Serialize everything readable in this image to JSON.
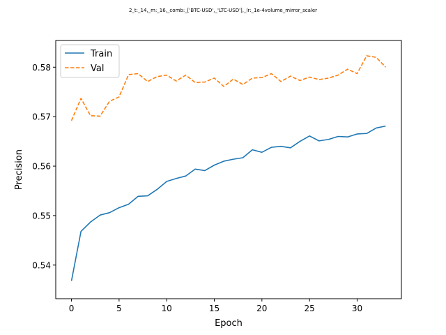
{
  "chart_data": {
    "type": "line",
    "title": "2_t:_14,_m:_16,_comb:_['BTC-USD',_'LTC-USD'],_lr:_1e-4volume_mirror_scaler",
    "xlabel": "Epoch",
    "ylabel": "Precision",
    "xlim": [
      -1.65,
      34.65
    ],
    "ylim": [
      0.5332,
      0.5854
    ],
    "xticks": [
      0,
      5,
      10,
      15,
      20,
      25,
      30
    ],
    "yticks": [
      0.54,
      0.55,
      0.56,
      0.57,
      0.58
    ],
    "ytick_labels": [
      "0.54",
      "0.55",
      "0.56",
      "0.57",
      "0.58"
    ],
    "grid": false,
    "legend_position": "upper-left",
    "x": [
      0,
      1,
      2,
      3,
      4,
      5,
      6,
      7,
      8,
      9,
      10,
      11,
      12,
      13,
      14,
      15,
      16,
      17,
      18,
      19,
      20,
      21,
      22,
      23,
      24,
      25,
      26,
      27,
      28,
      29,
      30,
      31,
      32,
      33
    ],
    "series": [
      {
        "name": "Train",
        "color": "#1f77b4",
        "dash": "solid",
        "values": [
          0.5368,
          0.5468,
          0.5487,
          0.5501,
          0.5506,
          0.5516,
          0.5523,
          0.5539,
          0.554,
          0.5553,
          0.5569,
          0.5575,
          0.558,
          0.5594,
          0.5591,
          0.5602,
          0.561,
          0.5614,
          0.5617,
          0.5633,
          0.5628,
          0.5638,
          0.564,
          0.5637,
          0.565,
          0.5661,
          0.5651,
          0.5654,
          0.566,
          0.5659,
          0.5665,
          0.5666,
          0.5677,
          0.5681
        ]
      },
      {
        "name": "Val",
        "color": "#ff7f0e",
        "dash": "dashed",
        "values": [
          0.5692,
          0.5737,
          0.5702,
          0.5701,
          0.5731,
          0.574,
          0.5785,
          0.5787,
          0.5771,
          0.5781,
          0.5784,
          0.5772,
          0.5784,
          0.5769,
          0.577,
          0.5778,
          0.5761,
          0.5776,
          0.5765,
          0.5778,
          0.5779,
          0.5787,
          0.5771,
          0.5782,
          0.5773,
          0.578,
          0.5775,
          0.5778,
          0.5784,
          0.5796,
          0.5787,
          0.5823,
          0.582,
          0.58
        ]
      }
    ]
  }
}
